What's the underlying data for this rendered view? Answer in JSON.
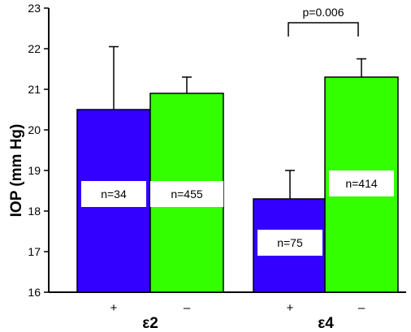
{
  "chart_data": {
    "type": "bar",
    "ylabel": "IOP (mm Hg)",
    "ylim": [
      16,
      23
    ],
    "yticks": [
      "16",
      "17",
      "18",
      "19",
      "20",
      "21",
      "22",
      "23"
    ],
    "groups": [
      "ε2",
      "ε4"
    ],
    "bars": [
      {
        "group": "ε2",
        "sign": "+",
        "value": 20.5,
        "error": 1.55,
        "n_label": "n=34",
        "color": "#3300ff"
      },
      {
        "group": "ε2",
        "sign": "–",
        "value": 20.9,
        "error": 0.4,
        "n_label": "n=455",
        "color": "#33ff00"
      },
      {
        "group": "ε4",
        "sign": "+",
        "value": 18.3,
        "error": 0.7,
        "n_label": "n=75",
        "color": "#3300ff"
      },
      {
        "group": "ε4",
        "sign": "–",
        "value": 21.3,
        "error": 0.45,
        "n_label": "n=414",
        "color": "#33ff00"
      }
    ],
    "annotation": "p=0.006"
  }
}
